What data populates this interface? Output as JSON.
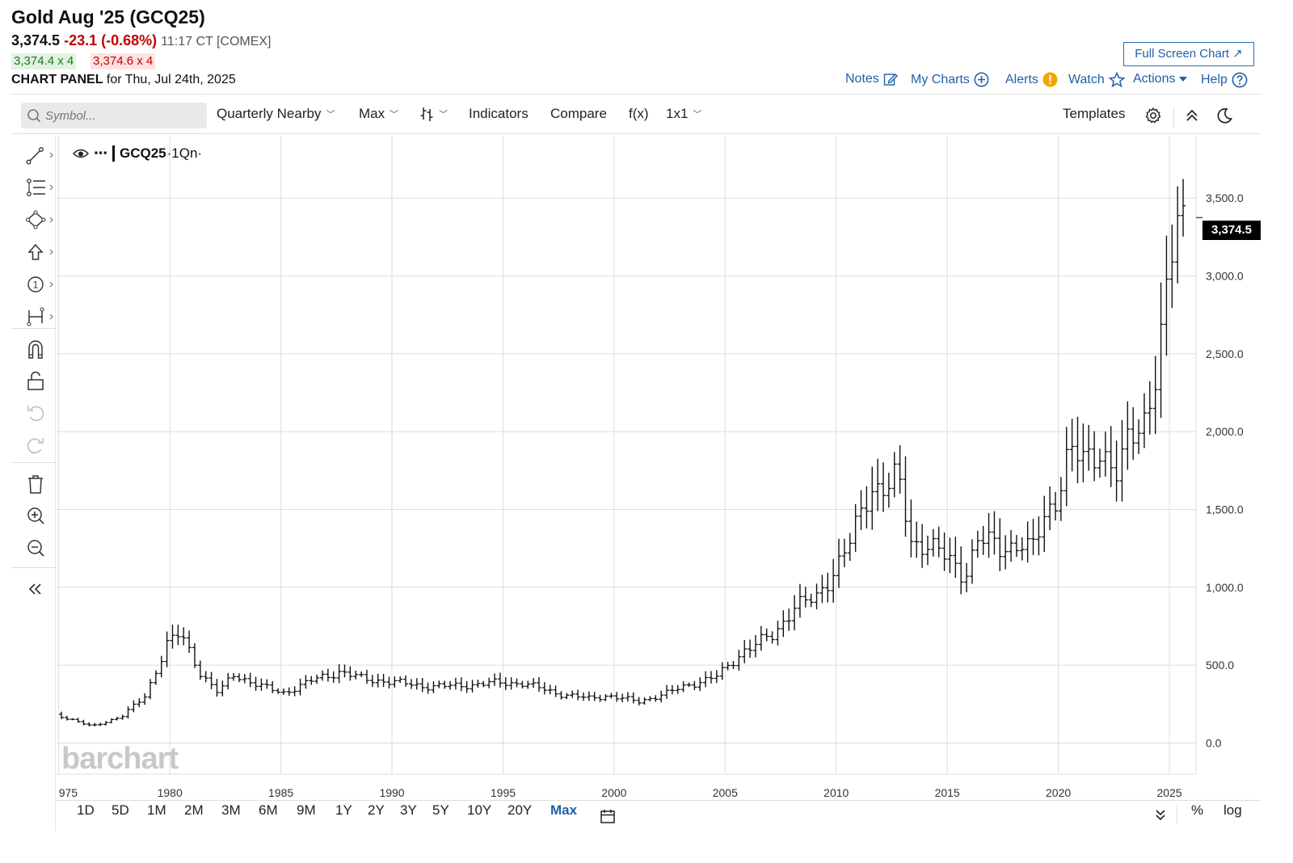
{
  "header": {
    "title": "Gold Aug '25 (GCQ25)",
    "last": "3,374.5",
    "change": "-23.1 (-0.68%)",
    "time": "11:17 CT [COMEX]",
    "bid": "3,374.4 x 4",
    "ask": "3,374.6 x 4",
    "panel_label_bold": "CHART PANEL",
    "panel_label_rest": " for Thu, Jul 24th, 2025",
    "full_screen": "Full Screen Chart ↗"
  },
  "top_links": {
    "notes": "Notes",
    "my_charts": "My Charts",
    "alerts": "Alerts",
    "watch": "Watch",
    "actions": "Actions",
    "help": "Help"
  },
  "toolbar": {
    "symbol_placeholder": "Symbol...",
    "period": "Quarterly Nearby",
    "range": "Max",
    "indicators": "Indicators",
    "compare": "Compare",
    "fx": "f(x)",
    "layout": "1x1",
    "templates": "Templates"
  },
  "legend": {
    "symbol": "GCQ25",
    "interval": "·1Qn·"
  },
  "last_price_tag": "3,374.5",
  "watermark": "barchart",
  "range_buttons": [
    "1D",
    "5D",
    "1M",
    "2M",
    "3M",
    "6M",
    "9M",
    "1Y",
    "2Y",
    "3Y",
    "5Y",
    "10Y",
    "20Y",
    "Max"
  ],
  "scale_buttons": {
    "percent": "%",
    "log": "log"
  },
  "colors": {
    "link": "#1f5fa8",
    "down": "#c00000",
    "up": "#1a7a1a",
    "bars": "#111111",
    "grid": "#dddddd"
  },
  "chart_data": {
    "type": "ohlc",
    "interval": "quarterly",
    "y_ticks": [
      "0.0",
      "500.0",
      "1,000.0",
      "1,500.0",
      "2,000.0",
      "2,500.0",
      "3,000.0",
      "3,500.0"
    ],
    "y_tick_values": [
      0,
      500,
      1000,
      1500,
      2000,
      2500,
      3000,
      3500
    ],
    "x_ticks": [
      "975",
      "1980",
      "1985",
      "1990",
      "1995",
      "2000",
      "2005",
      "2010",
      "2015",
      "2020",
      "2025"
    ],
    "x_tick_values": [
      1975,
      1980,
      1985,
      1990,
      1995,
      2000,
      2005,
      2010,
      2015,
      2020,
      2025
    ],
    "xlim": [
      1974.9,
      2026.2
    ],
    "ylim": [
      -200,
      3900
    ],
    "grid": true,
    "last_price": 3374.5,
    "anchors": [
      [
        1975.0,
        185
      ],
      [
        1976.6,
        105
      ],
      [
        1978.0,
        175
      ],
      [
        1979.0,
        300
      ],
      [
        1980.0,
        640
      ],
      [
        1980.6,
        700
      ],
      [
        1981.5,
        450
      ],
      [
        1982.3,
        320
      ],
      [
        1983.0,
        440
      ],
      [
        1984.3,
        360
      ],
      [
        1985.2,
        320
      ],
      [
        1986.5,
        400
      ],
      [
        1987.8,
        460
      ],
      [
        1988.8,
        410
      ],
      [
        1990.0,
        395
      ],
      [
        1991.5,
        365
      ],
      [
        1993.0,
        365
      ],
      [
        1994.5,
        385
      ],
      [
        1996.0,
        385
      ],
      [
        1997.5,
        320
      ],
      [
        1999.0,
        285
      ],
      [
        1999.8,
        305
      ],
      [
        2001.2,
        265
      ],
      [
        2002.5,
        320
      ],
      [
        2003.5,
        375
      ],
      [
        2004.8,
        430
      ],
      [
        2006.0,
        600
      ],
      [
        2007.3,
        690
      ],
      [
        2008.2,
        880
      ],
      [
        2009.2,
        920
      ],
      [
        2010.0,
        1110
      ],
      [
        2010.8,
        1300
      ],
      [
        2011.7,
        1650
      ],
      [
        2012.4,
        1650
      ],
      [
        2012.9,
        1700
      ],
      [
        2013.5,
        1280
      ],
      [
        2014.2,
        1290
      ],
      [
        2015.0,
        1190
      ],
      [
        2015.9,
        1080
      ],
      [
        2016.5,
        1310
      ],
      [
        2017.5,
        1250
      ],
      [
        2018.4,
        1290
      ],
      [
        2018.9,
        1220
      ],
      [
        2019.5,
        1450
      ],
      [
        2020.0,
        1580
      ],
      [
        2020.6,
        1870
      ],
      [
        2021.3,
        1800
      ],
      [
        2022.0,
        1900
      ],
      [
        2022.8,
        1700
      ],
      [
        2023.3,
        1950
      ],
      [
        2024.0,
        2100
      ],
      [
        2024.6,
        2420
      ],
      [
        2025.0,
        2850
      ],
      [
        2025.4,
        3320
      ],
      [
        2025.5,
        3374.5
      ]
    ]
  }
}
